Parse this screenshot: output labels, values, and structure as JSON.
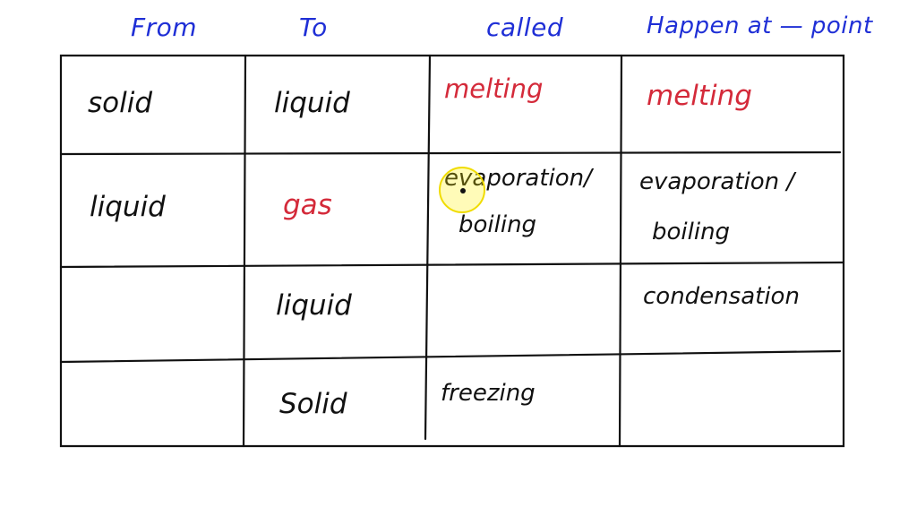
{
  "headers": {
    "from": "From",
    "to": "To",
    "called": "called",
    "happen_at": "Happen at — point"
  },
  "rows": [
    {
      "from": "solid",
      "to": "liquid",
      "called": "melting",
      "happen_at": "melting"
    },
    {
      "from": "liquid",
      "to": "gas",
      "called_line1": "evaporation/",
      "called_line2": "boiling",
      "happen_at_line1": "evaporation /",
      "happen_at_line2": "boiling"
    },
    {
      "from": "",
      "to": "liquid",
      "called": "",
      "happen_at": "condensation"
    },
    {
      "from": "",
      "to": "Solid",
      "called": "freezing",
      "happen_at": ""
    }
  ],
  "colors": {
    "header": "#1f2fd6",
    "ink": "#111111",
    "highlight_red": "#d42a3a",
    "cursor": "#f0dc00"
  }
}
